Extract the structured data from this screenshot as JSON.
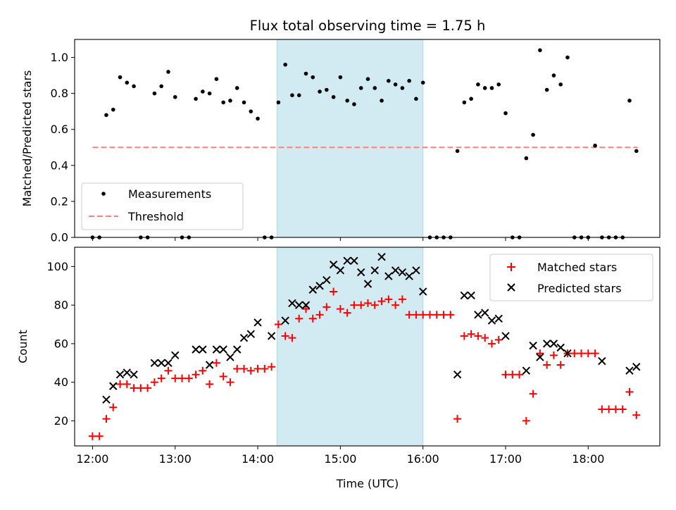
{
  "figure": {
    "title": "Flux total observing time = 1.75 h"
  },
  "colors": {
    "shade": "#add8e6",
    "threshold": "#ff7f7f",
    "matched": "#ff0000",
    "predicted": "#000000"
  },
  "chart_data": [
    {
      "type": "scatter",
      "ylabel": "Matched/Predicted stars",
      "xlim": [
        "11:47",
        "18:52"
      ],
      "ylim": [
        0,
        1.1
      ],
      "yticks": [
        "0.0",
        "0.2",
        "0.4",
        "0.6",
        "0.8",
        "1.0"
      ],
      "shaded_interval": [
        "14:14",
        "16:00"
      ],
      "legend": {
        "position": "lower-left",
        "entries": [
          "Measurements",
          "Threshold"
        ]
      },
      "threshold": {
        "name": "Threshold",
        "value": 0.5,
        "x_range": [
          "12:00",
          "18:36"
        ]
      },
      "series": [
        {
          "name": "Measurements",
          "x": [
            "12:00",
            "12:05",
            "12:10",
            "12:15",
            "12:20",
            "12:25",
            "12:30",
            "12:35",
            "12:40",
            "12:45",
            "12:50",
            "12:55",
            "13:00",
            "13:05",
            "13:10",
            "13:15",
            "13:20",
            "13:25",
            "13:30",
            "13:35",
            "13:40",
            "13:45",
            "13:50",
            "13:55",
            "14:00",
            "14:05",
            "14:10",
            "14:15",
            "14:20",
            "14:25",
            "14:30",
            "14:35",
            "14:40",
            "14:45",
            "14:50",
            "14:55",
            "15:00",
            "15:05",
            "15:10",
            "15:15",
            "15:20",
            "15:25",
            "15:30",
            "15:35",
            "15:40",
            "15:45",
            "15:50",
            "15:55",
            "16:00",
            "16:05",
            "16:10",
            "16:15",
            "16:20",
            "16:25",
            "16:30",
            "16:35",
            "16:40",
            "16:45",
            "16:50",
            "16:55",
            "17:00",
            "17:05",
            "17:10",
            "17:15",
            "17:20",
            "17:25",
            "17:30",
            "17:35",
            "17:40",
            "17:45",
            "17:50",
            "17:55",
            "18:00",
            "18:05",
            "18:10",
            "18:15",
            "18:20",
            "18:25",
            "18:30",
            "18:35"
          ],
          "y": [
            0.0,
            0.0,
            0.68,
            0.71,
            0.89,
            0.86,
            0.84,
            0.0,
            0.0,
            0.8,
            0.84,
            0.92,
            0.78,
            0.0,
            0.0,
            0.77,
            0.81,
            0.8,
            0.88,
            0.75,
            0.76,
            0.83,
            0.75,
            0.7,
            0.66,
            0.0,
            0.0,
            0.75,
            0.96,
            0.79,
            0.79,
            0.91,
            0.89,
            0.81,
            0.82,
            0.78,
            0.89,
            0.76,
            0.74,
            0.83,
            0.88,
            0.83,
            0.76,
            0.87,
            0.85,
            0.83,
            0.87,
            0.77,
            0.86,
            0.0,
            0.0,
            0.0,
            0.0,
            0.48,
            0.75,
            0.77,
            0.85,
            0.83,
            0.83,
            0.85,
            0.69,
            0.0,
            0.0,
            0.44,
            0.57,
            1.04,
            0.82,
            0.9,
            0.85,
            1.0,
            0.0,
            0.0,
            0.0,
            0.51,
            0.0,
            0.0,
            0.0,
            0.0,
            0.76,
            0.48
          ]
        }
      ]
    },
    {
      "type": "scatter",
      "xlabel": "Time (UTC)",
      "ylabel": "Count",
      "xlim": [
        "11:47",
        "18:52"
      ],
      "xticks": [
        "12:00",
        "13:00",
        "14:00",
        "15:00",
        "16:00",
        "17:00",
        "18:00"
      ],
      "ylim": [
        7,
        110
      ],
      "yticks": [
        "20",
        "40",
        "60",
        "80",
        "100"
      ],
      "shaded_interval": [
        "14:14",
        "16:00"
      ],
      "legend": {
        "position": "top-right",
        "entries": [
          "Matched stars",
          "Predicted stars"
        ]
      },
      "series": [
        {
          "name": "Matched stars",
          "marker": "plus",
          "x": [
            "12:00",
            "12:05",
            "12:10",
            "12:15",
            "12:20",
            "12:25",
            "12:30",
            "12:35",
            "12:40",
            "12:45",
            "12:50",
            "12:55",
            "13:00",
            "13:05",
            "13:10",
            "13:15",
            "13:20",
            "13:25",
            "13:30",
            "13:35",
            "13:40",
            "13:45",
            "13:50",
            "13:55",
            "14:00",
            "14:05",
            "14:10",
            "14:15",
            "14:20",
            "14:25",
            "14:30",
            "14:35",
            "14:40",
            "14:45",
            "14:50",
            "14:55",
            "15:00",
            "15:05",
            "15:10",
            "15:15",
            "15:20",
            "15:25",
            "15:30",
            "15:35",
            "15:40",
            "15:45",
            "15:50",
            "15:55",
            "16:00",
            "16:05",
            "16:10",
            "16:15",
            "16:20",
            "16:25",
            "16:30",
            "16:35",
            "16:40",
            "16:45",
            "16:50",
            "16:55",
            "17:00",
            "17:05",
            "17:10",
            "17:15",
            "17:20",
            "17:25",
            "17:30",
            "17:35",
            "17:40",
            "17:45",
            "17:50",
            "17:55",
            "18:00",
            "18:05",
            "18:10",
            "18:15",
            "18:20",
            "18:25",
            "18:30",
            "18:35"
          ],
          "y": [
            12,
            12,
            21,
            27,
            39,
            39,
            37,
            37,
            37,
            40,
            42,
            46,
            42,
            42,
            42,
            44,
            46,
            39,
            50,
            43,
            40,
            47,
            47,
            46,
            47,
            47,
            48,
            70,
            64,
            63,
            73,
            78,
            73,
            75,
            79,
            87,
            78,
            76,
            80,
            80,
            81,
            80,
            82,
            83,
            80,
            83,
            75,
            75,
            75,
            75,
            75,
            75,
            75,
            21,
            64,
            65,
            64,
            63,
            60,
            62,
            44,
            44,
            44,
            20,
            34,
            55,
            49,
            54,
            49,
            55,
            55,
            55,
            55,
            55,
            26,
            26,
            26,
            26,
            35,
            23
          ]
        },
        {
          "name": "Predicted stars",
          "marker": "x",
          "x": [
            "12:10",
            "12:15",
            "12:20",
            "12:25",
            "12:30",
            "12:45",
            "12:50",
            "12:55",
            "13:00",
            "13:15",
            "13:20",
            "13:25",
            "13:30",
            "13:35",
            "13:40",
            "13:45",
            "13:50",
            "13:55",
            "14:00",
            "14:10",
            "14:20",
            "14:25",
            "14:30",
            "14:35",
            "14:40",
            "14:45",
            "14:50",
            "14:55",
            "15:00",
            "15:05",
            "15:10",
            "15:15",
            "15:20",
            "15:25",
            "15:30",
            "15:35",
            "15:40",
            "15:45",
            "15:50",
            "15:55",
            "16:00",
            "16:25",
            "16:30",
            "16:35",
            "16:40",
            "16:45",
            "16:50",
            "16:55",
            "17:00",
            "17:15",
            "17:20",
            "17:25",
            "17:30",
            "17:35",
            "17:40",
            "17:45",
            "18:10",
            "18:30",
            "18:35"
          ],
          "y": [
            31,
            38,
            44,
            45,
            44,
            50,
            50,
            50,
            54,
            57,
            57,
            49,
            57,
            57,
            53,
            57,
            63,
            65,
            71,
            64,
            72,
            81,
            80,
            80,
            88,
            90,
            93,
            101,
            98,
            103,
            103,
            97,
            91,
            98,
            105,
            95,
            98,
            97,
            95,
            98,
            87,
            44,
            85,
            85,
            75,
            76,
            72,
            73,
            64,
            46,
            59,
            53,
            60,
            60,
            58,
            55,
            51,
            46,
            48
          ]
        }
      ]
    }
  ]
}
